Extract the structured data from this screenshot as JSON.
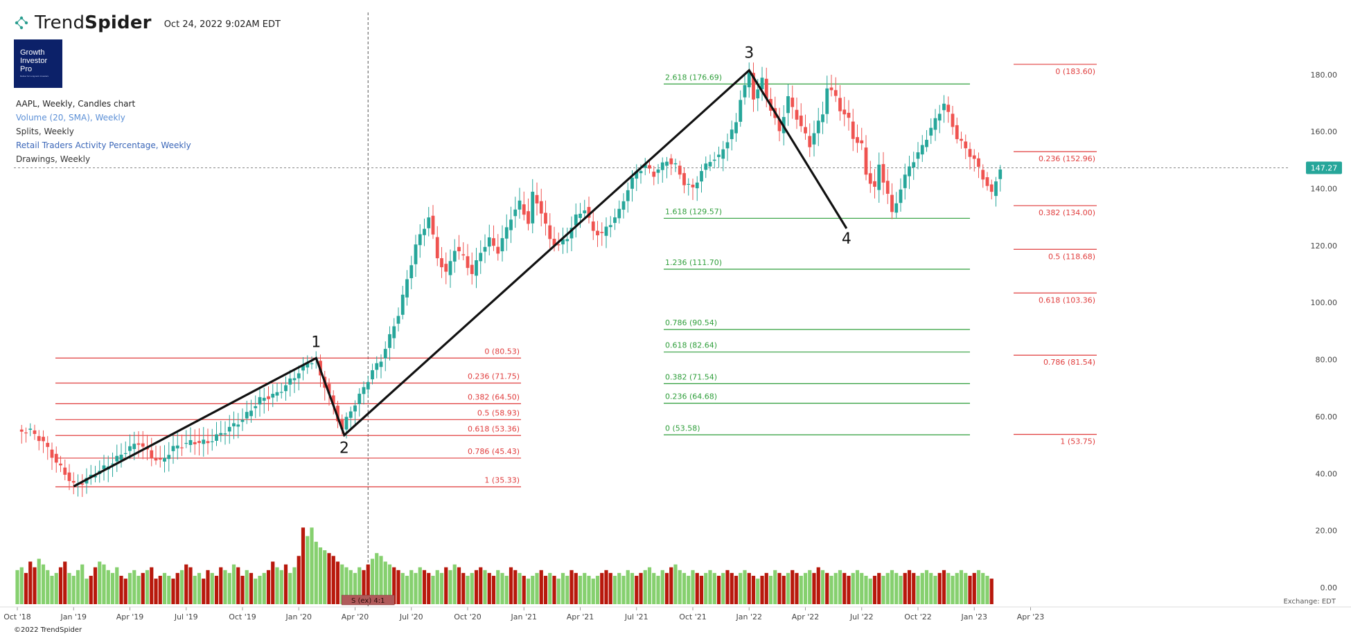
{
  "header": {
    "brand_light": "Trend",
    "brand_bold": "Spider",
    "timestamp": "Oct 24, 2022 9:02AM EDT"
  },
  "logo": {
    "line1": "Growth",
    "line2": "Investor",
    "line3": "Pro",
    "tagline": "Deliver for Long-term investors"
  },
  "legend": [
    {
      "label": "AAPL, Weekly, Candles chart",
      "color": "#222222"
    },
    {
      "label": "Volume (20, SMA), Weekly",
      "color": "#5b8fd6"
    },
    {
      "label": "Splits, Weekly",
      "color": "#333333"
    },
    {
      "label": "Retail Traders Activity Percentage, Weekly",
      "color": "#3a66b8"
    },
    {
      "label": "Drawings, Weekly",
      "color": "#333333"
    }
  ],
  "footer": {
    "copyright": "©2022 TrendSpider",
    "exchange": "Exchange: EDT"
  },
  "chart_data": {
    "type": "candlestick",
    "symbol": "AAPL",
    "timeframe": "Weekly",
    "last_price": 147.27,
    "price_label": "147.27",
    "y_axis": {
      "range": [
        -20,
        190
      ],
      "ticks": [
        0,
        20,
        40,
        60,
        80,
        100,
        120,
        140,
        160,
        180
      ],
      "tick_labels": [
        "0.00",
        "20.00",
        "40.00",
        "60.00",
        "80.00",
        "100.00",
        "120.00",
        "140.00",
        "160.00",
        "180.00"
      ]
    },
    "x_axis": {
      "ticks": [
        "Oct '18",
        "Jan '19",
        "Apr '19",
        "Jul '19",
        "Oct '19",
        "Jan '20",
        "Apr '20",
        "Jul '20",
        "Oct '20",
        "Jan '21",
        "Apr '21",
        "Jul '21",
        "Oct '21",
        "Jan '22",
        "Apr '22",
        "Jul '22",
        "Oct '22",
        "Jan '23",
        "Apr '23"
      ]
    },
    "price_path": [
      {
        "w": 0,
        "c": 55
      },
      {
        "w": 3,
        "c": 55
      },
      {
        "w": 6,
        "c": 51
      },
      {
        "w": 9,
        "c": 44
      },
      {
        "w": 11,
        "c": 40
      },
      {
        "w": 13,
        "c": 36
      },
      {
        "w": 15,
        "c": 37
      },
      {
        "w": 18,
        "c": 40
      },
      {
        "w": 22,
        "c": 44
      },
      {
        "w": 25,
        "c": 48
      },
      {
        "w": 28,
        "c": 51
      },
      {
        "w": 31,
        "c": 46
      },
      {
        "w": 33,
        "c": 44
      },
      {
        "w": 36,
        "c": 49
      },
      {
        "w": 40,
        "c": 51
      },
      {
        "w": 44,
        "c": 51
      },
      {
        "w": 48,
        "c": 55
      },
      {
        "w": 52,
        "c": 59
      },
      {
        "w": 56,
        "c": 66
      },
      {
        "w": 60,
        "c": 68
      },
      {
        "w": 64,
        "c": 74
      },
      {
        "w": 67,
        "c": 79
      },
      {
        "w": 69,
        "c": 80
      },
      {
        "w": 70,
        "c": 74
      },
      {
        "w": 72,
        "c": 68
      },
      {
        "w": 74,
        "c": 59
      },
      {
        "w": 75,
        "c": 56
      },
      {
        "w": 77,
        "c": 62
      },
      {
        "w": 80,
        "c": 70
      },
      {
        "w": 82,
        "c": 76
      },
      {
        "w": 84,
        "c": 80
      },
      {
        "w": 86,
        "c": 88
      },
      {
        "w": 88,
        "c": 96
      },
      {
        "w": 90,
        "c": 108
      },
      {
        "w": 92,
        "c": 120
      },
      {
        "w": 95,
        "c": 130
      },
      {
        "w": 97,
        "c": 116
      },
      {
        "w": 99,
        "c": 110
      },
      {
        "w": 101,
        "c": 119
      },
      {
        "w": 103,
        "c": 116
      },
      {
        "w": 105,
        "c": 110
      },
      {
        "w": 107,
        "c": 118
      },
      {
        "w": 109,
        "c": 122
      },
      {
        "w": 111,
        "c": 118
      },
      {
        "w": 114,
        "c": 130
      },
      {
        "w": 116,
        "c": 135
      },
      {
        "w": 118,
        "c": 128
      },
      {
        "w": 119,
        "c": 138
      },
      {
        "w": 121,
        "c": 132
      },
      {
        "w": 123,
        "c": 122
      },
      {
        "w": 125,
        "c": 120
      },
      {
        "w": 127,
        "c": 123
      },
      {
        "w": 129,
        "c": 130
      },
      {
        "w": 131,
        "c": 133
      },
      {
        "w": 133,
        "c": 125
      },
      {
        "w": 135,
        "c": 124
      },
      {
        "w": 137,
        "c": 128
      },
      {
        "w": 139,
        "c": 132
      },
      {
        "w": 141,
        "c": 140
      },
      {
        "w": 143,
        "c": 146
      },
      {
        "w": 145,
        "c": 148
      },
      {
        "w": 147,
        "c": 145
      },
      {
        "w": 150,
        "c": 150
      },
      {
        "w": 152,
        "c": 148
      },
      {
        "w": 154,
        "c": 142
      },
      {
        "w": 156,
        "c": 140
      },
      {
        "w": 158,
        "c": 146
      },
      {
        "w": 160,
        "c": 150
      },
      {
        "w": 162,
        "c": 151
      },
      {
        "w": 164,
        "c": 157
      },
      {
        "w": 166,
        "c": 163
      },
      {
        "w": 167,
        "c": 172
      },
      {
        "w": 169,
        "c": 180
      },
      {
        "w": 170,
        "c": 172
      },
      {
        "w": 172,
        "c": 178
      },
      {
        "w": 173,
        "c": 172
      },
      {
        "w": 175,
        "c": 164
      },
      {
        "w": 176,
        "c": 160
      },
      {
        "w": 178,
        "c": 172
      },
      {
        "w": 179,
        "c": 168
      },
      {
        "w": 181,
        "c": 162
      },
      {
        "w": 183,
        "c": 155
      },
      {
        "w": 184,
        "c": 160
      },
      {
        "w": 186,
        "c": 166
      },
      {
        "w": 187,
        "c": 176
      },
      {
        "w": 189,
        "c": 172
      },
      {
        "w": 190,
        "c": 168
      },
      {
        "w": 192,
        "c": 164
      },
      {
        "w": 193,
        "c": 158
      },
      {
        "w": 195,
        "c": 155
      },
      {
        "w": 196,
        "c": 145
      },
      {
        "w": 198,
        "c": 140
      },
      {
        "w": 199,
        "c": 148
      },
      {
        "w": 201,
        "c": 138
      },
      {
        "w": 202,
        "c": 131
      },
      {
        "w": 204,
        "c": 140
      },
      {
        "w": 206,
        "c": 148
      },
      {
        "w": 208,
        "c": 152
      },
      {
        "w": 210,
        "c": 158
      },
      {
        "w": 212,
        "c": 164
      },
      {
        "w": 214,
        "c": 170
      },
      {
        "w": 215,
        "c": 166
      },
      {
        "w": 217,
        "c": 158
      },
      {
        "w": 219,
        "c": 154
      },
      {
        "w": 221,
        "c": 150
      },
      {
        "w": 223,
        "c": 144
      },
      {
        "w": 225,
        "c": 138
      },
      {
        "w": 226,
        "c": 143
      },
      {
        "w": 227,
        "c": 147.27
      }
    ],
    "elliott_wave": {
      "labels": [
        "1",
        "2",
        "3",
        "4"
      ],
      "points": [
        {
          "w": 13,
          "p": 35.5
        },
        {
          "w": 69,
          "p": 80.5
        },
        {
          "w": 75.5,
          "p": 53.5
        },
        {
          "w": 169,
          "p": 181.5
        },
        {
          "w": 191.5,
          "p": 126
        }
      ]
    },
    "fib_retracement_1": {
      "color": "#e03c3c",
      "levels": [
        {
          "label": "0 (80.53)",
          "value": 80.53
        },
        {
          "label": "0.236 (71.75)",
          "value": 71.75
        },
        {
          "label": "0.382 (64.50)",
          "value": 64.5
        },
        {
          "label": "0.5 (58.93)",
          "value": 58.93
        },
        {
          "label": "0.618 (53.36)",
          "value": 53.36
        },
        {
          "label": "0.786 (45.43)",
          "value": 45.43
        },
        {
          "label": "1 (35.33)",
          "value": 35.33
        }
      ]
    },
    "fib_extension": {
      "color": "#2e9e3a",
      "levels": [
        {
          "label": "2.618 (176.69)",
          "value": 176.69
        },
        {
          "label": "1.618 (129.57)",
          "value": 129.57
        },
        {
          "label": "1.236 (111.70)",
          "value": 111.7
        },
        {
          "label": "0.786 (90.54)",
          "value": 90.54
        },
        {
          "label": "0.618 (82.64)",
          "value": 82.64
        },
        {
          "label": "0.382 (71.54)",
          "value": 71.54
        },
        {
          "label": "0.236 (64.68)",
          "value": 64.68
        },
        {
          "label": "0 (53.58)",
          "value": 53.58
        }
      ]
    },
    "fib_retracement_2": {
      "color": "#e03c3c",
      "levels": [
        {
          "label": "0 (183.60)",
          "value": 183.6
        },
        {
          "label": "0.236 (152.96)",
          "value": 152.96
        },
        {
          "label": "0.382 (134.00)",
          "value": 134.0
        },
        {
          "label": "0.5 (118.68)",
          "value": 118.68
        },
        {
          "label": "0.618 (103.36)",
          "value": 103.36
        },
        {
          "label": "0.786 (81.54)",
          "value": 81.54
        },
        {
          "label": "1 (53.75)",
          "value": 53.75
        }
      ]
    },
    "split_marker": {
      "label": "S (ex) 4:1",
      "week": 81
    },
    "volume": {
      "bars": [
        12,
        13,
        11,
        15,
        13,
        16,
        14,
        12,
        10,
        11,
        13,
        15,
        11,
        10,
        12,
        14,
        9,
        10,
        13,
        15,
        14,
        12,
        11,
        13,
        10,
        9,
        11,
        12,
        10,
        11,
        12,
        13,
        9,
        10,
        11,
        10,
        9,
        11,
        12,
        14,
        13,
        10,
        11,
        9,
        12,
        11,
        10,
        13,
        12,
        11,
        14,
        13,
        10,
        12,
        11,
        9,
        10,
        11,
        12,
        15,
        13,
        12,
        14,
        11,
        13,
        17,
        19,
        22,
        24,
        22,
        20,
        19,
        18,
        17,
        15,
        14,
        13,
        12,
        11,
        13,
        12,
        14,
        16,
        18,
        17,
        15,
        14,
        13,
        12,
        11,
        10,
        12,
        11,
        13,
        12,
        11,
        10,
        12,
        11,
        13,
        12,
        14,
        13,
        11,
        10,
        11,
        12,
        13,
        12,
        11,
        10,
        12,
        11,
        10,
        13,
        12,
        11,
        10,
        9,
        10,
        11,
        12,
        10,
        11,
        10,
        9,
        11,
        10,
        12,
        11,
        10,
        11,
        10,
        9,
        10,
        11,
        12,
        11,
        10,
        11,
        10,
        12,
        11,
        10,
        11,
        12,
        13,
        11,
        10,
        12,
        11,
        13,
        14,
        12,
        11,
        10,
        12,
        11,
        10,
        11,
        12,
        11,
        10,
        11,
        12,
        11,
        10,
        11,
        12,
        11,
        10,
        9,
        10,
        11,
        10,
        12,
        11,
        10,
        11,
        12,
        11,
        10,
        11,
        12,
        11,
        13,
        12,
        11,
        10,
        11,
        12,
        11,
        10,
        11,
        12,
        11,
        10,
        9,
        10,
        11,
        10,
        11,
        12,
        11,
        10,
        11,
        12,
        11,
        10,
        11,
        12,
        11,
        10,
        11,
        12,
        11,
        10,
        11,
        12,
        11,
        10,
        11,
        12,
        11,
        10,
        9
      ],
      "peaks": [
        {
          "w": 66,
          "v": 27
        },
        {
          "w": 67,
          "v": 24
        },
        {
          "w": 68,
          "v": 27
        }
      ]
    }
  }
}
